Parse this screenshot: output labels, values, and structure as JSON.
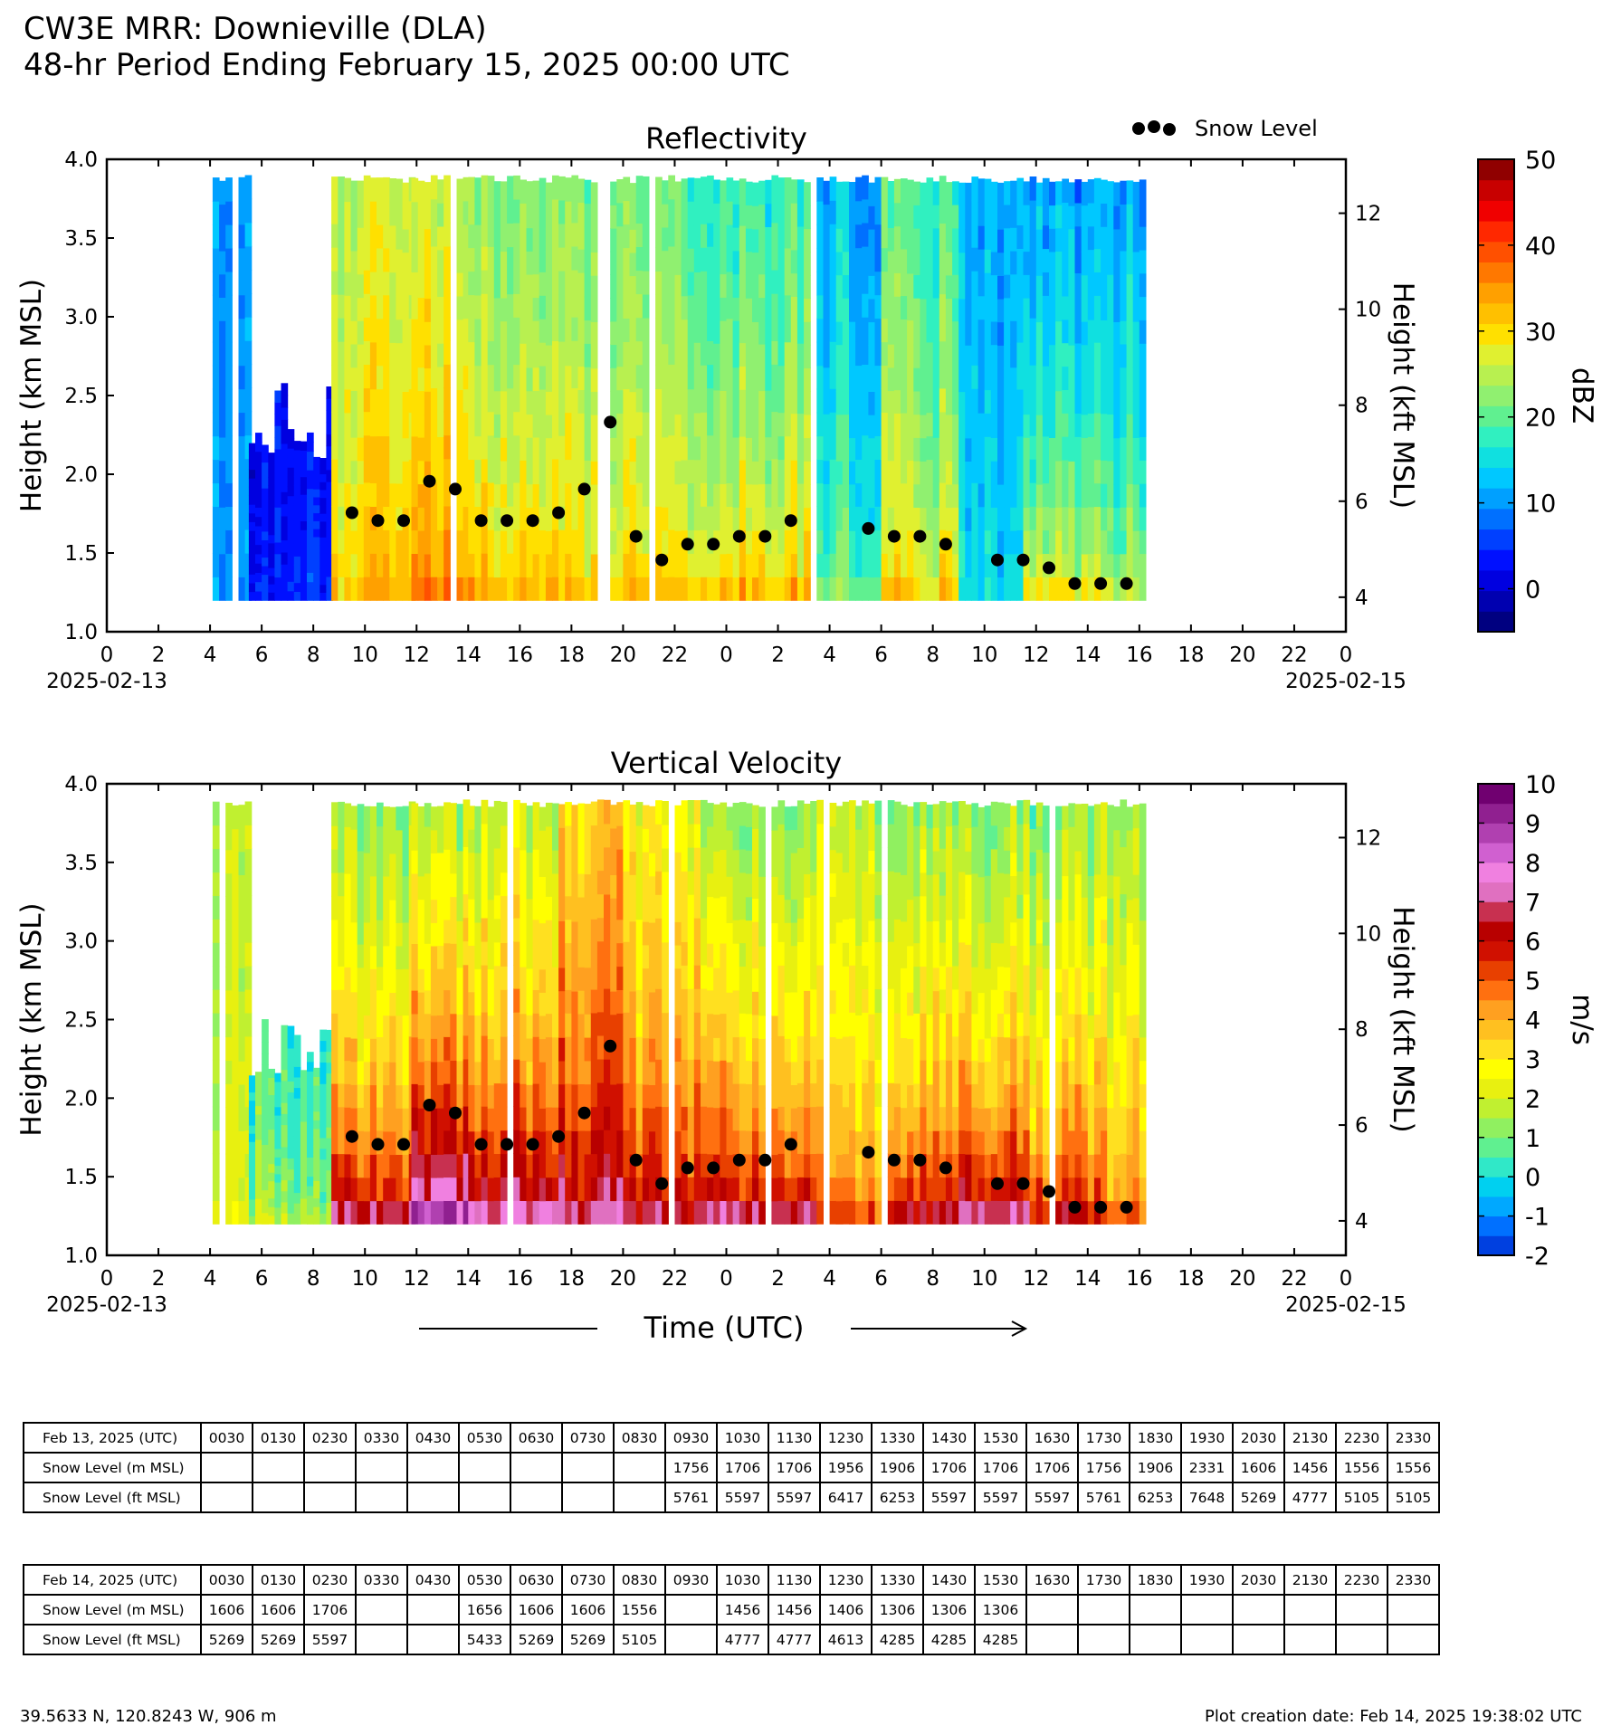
{
  "header": {
    "title": "CW3E MRR: Downieville (DLA)",
    "subtitle": "48-hr Period Ending February 15, 2025 00:00 UTC"
  },
  "common_axes": {
    "x_ticks": [
      "0",
      "2",
      "4",
      "6",
      "8",
      "10",
      "12",
      "14",
      "16",
      "18",
      "20",
      "22",
      "0",
      "2",
      "4",
      "6",
      "8",
      "10",
      "12",
      "14",
      "16",
      "18",
      "20",
      "22",
      "0"
    ],
    "x_date_left": "2025-02-13",
    "x_date_right": "2025-02-15",
    "y_left_ticks": [
      "1.0",
      "1.5",
      "2.0",
      "2.5",
      "3.0",
      "3.5",
      "4.0"
    ],
    "y_left_label": "Height (km MSL)",
    "y_right_ticks": [
      "4",
      "6",
      "8",
      "10",
      "12"
    ],
    "y_right_label": "Height (kft MSL)",
    "time_label": "Time (UTC)"
  },
  "legend": {
    "snow_level": "Snow Level"
  },
  "colorbars": {
    "dbz": {
      "label": "dBZ",
      "ticks": [
        "0",
        "10",
        "20",
        "30",
        "40",
        "50"
      ],
      "min": -5,
      "max": 50,
      "colors": [
        "#000080",
        "#0000b0",
        "#0000e0",
        "#0010ff",
        "#0040ff",
        "#0070ff",
        "#00a0ff",
        "#00c8ff",
        "#10e0e0",
        "#30f0c0",
        "#60f090",
        "#90f070",
        "#b8f050",
        "#e0f030",
        "#ffe000",
        "#ffc000",
        "#ffa000",
        "#ff7800",
        "#ff5000",
        "#ff2800",
        "#f00000",
        "#c80000",
        "#900000"
      ]
    },
    "ms": {
      "label": "m/s",
      "ticks": [
        "-2",
        "-1",
        "0",
        "1",
        "2",
        "3",
        "4",
        "5",
        "6",
        "7",
        "8",
        "9",
        "10"
      ],
      "min": -2,
      "max": 10,
      "colors": [
        "#0040e0",
        "#0070ff",
        "#00a8ff",
        "#00d0f0",
        "#30e8c8",
        "#60f090",
        "#90f060",
        "#c0f030",
        "#e8f010",
        "#ffff00",
        "#ffe020",
        "#ffc020",
        "#ffa020",
        "#ff7010",
        "#e84000",
        "#d01000",
        "#b80000",
        "#c83050",
        "#e070c0",
        "#f080e0",
        "#d060d0",
        "#b040b0",
        "#902090",
        "#700070"
      ]
    }
  },
  "tables": [
    {
      "header": "Feb 13, 2025 (UTC)",
      "times": [
        "0030",
        "0130",
        "0230",
        "0330",
        "0430",
        "0530",
        "0630",
        "0730",
        "0830",
        "0930",
        "1030",
        "1130",
        "1230",
        "1330",
        "1430",
        "1530",
        "1630",
        "1730",
        "1830",
        "1930",
        "2030",
        "2130",
        "2230",
        "2330"
      ],
      "rows": [
        {
          "label": "Snow Level (m MSL)",
          "values": [
            "",
            "",
            "",
            "",
            "",
            "",
            "",
            "",
            "",
            "1756",
            "1706",
            "1706",
            "1956",
            "1906",
            "1706",
            "1706",
            "1706",
            "1756",
            "1906",
            "2331",
            "1606",
            "1456",
            "1556",
            "1556"
          ]
        },
        {
          "label": "Snow Level (ft MSL)",
          "values": [
            "",
            "",
            "",
            "",
            "",
            "",
            "",
            "",
            "",
            "5761",
            "5597",
            "5597",
            "6417",
            "6253",
            "5597",
            "5597",
            "5597",
            "5761",
            "6253",
            "7648",
            "5269",
            "4777",
            "5105",
            "5105"
          ]
        }
      ]
    },
    {
      "header": "Feb 14, 2025 (UTC)",
      "times": [
        "0030",
        "0130",
        "0230",
        "0330",
        "0430",
        "0530",
        "0630",
        "0730",
        "0830",
        "0930",
        "1030",
        "1130",
        "1230",
        "1330",
        "1430",
        "1530",
        "1630",
        "1730",
        "1830",
        "1930",
        "2030",
        "2130",
        "2230",
        "2330"
      ],
      "rows": [
        {
          "label": "Snow Level (m MSL)",
          "values": [
            "1606",
            "1606",
            "1706",
            "",
            "",
            "1656",
            "1606",
            "1606",
            "1556",
            "",
            "1456",
            "1456",
            "1406",
            "1306",
            "1306",
            "1306",
            "",
            "",
            "",
            "",
            "",
            "",
            "",
            ""
          ]
        },
        {
          "label": "Snow Level (ft MSL)",
          "values": [
            "5269",
            "5269",
            "5597",
            "",
            "",
            "5433",
            "5269",
            "5269",
            "5105",
            "",
            "4777",
            "4777",
            "4613",
            "4285",
            "4285",
            "4285",
            "",
            "",
            "",
            "",
            "",
            "",
            "",
            ""
          ]
        }
      ]
    }
  ],
  "footer": {
    "location": "39.5633 N, 120.8243 W, 906 m",
    "creation": "Plot creation date: Feb 14, 2025 19:38:02 UTC"
  },
  "chart_data": [
    {
      "type": "heatmap",
      "title": "Reflectivity",
      "xlabel": "",
      "ylabel": "Height (km MSL)",
      "y2label": "Height (kft MSL)",
      "colorbar_label": "dBZ",
      "xlim": [
        0,
        48
      ],
      "ylim": [
        1.0,
        4.0
      ],
      "clim": [
        -5,
        50
      ],
      "data_extent_hours": [
        4.1,
        40.2
      ],
      "data_height_range": [
        1.2,
        3.9
      ],
      "profile_segments": [
        {
          "start": 4.1,
          "end": 5.5,
          "top": 3.9,
          "surface": 10,
          "aloft": 10
        },
        {
          "start": 5.5,
          "end": 8.7,
          "top": 2.6,
          "surface": 4,
          "aloft": 2
        },
        {
          "start": 8.7,
          "end": 11.8,
          "top": 3.9,
          "surface": 32,
          "aloft": 25
        },
        {
          "start": 11.8,
          "end": 14.0,
          "top": 3.9,
          "surface": 38,
          "aloft": 27
        },
        {
          "start": 14.0,
          "end": 17.5,
          "top": 3.9,
          "surface": 34,
          "aloft": 23
        },
        {
          "start": 17.5,
          "end": 20.0,
          "top": 3.9,
          "surface": 31,
          "aloft": 22
        },
        {
          "start": 20.0,
          "end": 23.0,
          "top": 3.9,
          "surface": 31,
          "aloft": 20
        },
        {
          "start": 23.0,
          "end": 27.5,
          "top": 3.9,
          "surface": 32,
          "aloft": 18
        },
        {
          "start": 27.5,
          "end": 30.0,
          "top": 3.9,
          "surface": 22,
          "aloft": 12
        },
        {
          "start": 30.0,
          "end": 33.0,
          "top": 3.9,
          "surface": 30,
          "aloft": 18
        },
        {
          "start": 33.0,
          "end": 35.5,
          "top": 3.9,
          "surface": 14,
          "aloft": 10
        },
        {
          "start": 35.5,
          "end": 38.5,
          "top": 3.9,
          "surface": 28,
          "aloft": 10
        },
        {
          "start": 38.5,
          "end": 40.2,
          "top": 3.9,
          "surface": 26,
          "aloft": 12
        }
      ],
      "series": [
        {
          "name": "Snow Level",
          "x": [
            9.5,
            10.5,
            11.5,
            12.5,
            13.5,
            14.5,
            15.5,
            16.5,
            17.5,
            18.5,
            19.5,
            20.5,
            21.5,
            22.5,
            23.5,
            24.5,
            25.5,
            26.5,
            29.5,
            30.5,
            31.5,
            32.5,
            34.5,
            35.5,
            36.5,
            37.5,
            38.5,
            39.5
          ],
          "y": [
            1.756,
            1.706,
            1.706,
            1.956,
            1.906,
            1.706,
            1.706,
            1.706,
            1.756,
            1.906,
            2.331,
            1.606,
            1.456,
            1.556,
            1.556,
            1.606,
            1.606,
            1.706,
            1.656,
            1.606,
            1.606,
            1.556,
            1.456,
            1.456,
            1.406,
            1.306,
            1.306,
            1.306
          ]
        }
      ]
    },
    {
      "type": "heatmap",
      "title": "Vertical Velocity",
      "xlabel": "Time (UTC)",
      "ylabel": "Height (km MSL)",
      "y2label": "Height (kft MSL)",
      "colorbar_label": "m/s",
      "xlim": [
        0,
        48
      ],
      "ylim": [
        1.0,
        4.0
      ],
      "clim": [
        -2,
        10
      ],
      "data_extent_hours": [
        4.1,
        40.2
      ],
      "data_height_range": [
        1.2,
        3.9
      ],
      "profile_segments": [
        {
          "start": 4.1,
          "end": 5.5,
          "top": 3.9,
          "surface": 2,
          "aloft": 1.5
        },
        {
          "start": 5.5,
          "end": 8.7,
          "top": 2.6,
          "surface": 1.8,
          "aloft": 0.5
        },
        {
          "start": 8.7,
          "end": 11.8,
          "top": 3.9,
          "surface": 6.5,
          "aloft": 1.2
        },
        {
          "start": 11.8,
          "end": 14.0,
          "top": 3.9,
          "surface": 8.5,
          "aloft": 1.5
        },
        {
          "start": 14.0,
          "end": 17.5,
          "top": 3.9,
          "surface": 7.5,
          "aloft": 2
        },
        {
          "start": 17.5,
          "end": 20.0,
          "top": 3.9,
          "surface": 7,
          "aloft": 3.5
        },
        {
          "start": 20.0,
          "end": 23.0,
          "top": 3.9,
          "surface": 6.5,
          "aloft": 2.5
        },
        {
          "start": 23.0,
          "end": 27.5,
          "top": 3.9,
          "surface": 7,
          "aloft": 1.5
        },
        {
          "start": 27.5,
          "end": 30.0,
          "top": 3.9,
          "surface": 5,
          "aloft": 1.8
        },
        {
          "start": 30.0,
          "end": 33.0,
          "top": 3.9,
          "surface": 6.5,
          "aloft": 1.5
        },
        {
          "start": 33.0,
          "end": 35.5,
          "top": 3.9,
          "surface": 7,
          "aloft": 1.2
        },
        {
          "start": 35.5,
          "end": 38.5,
          "top": 3.9,
          "surface": 6,
          "aloft": 1.3
        },
        {
          "start": 38.5,
          "end": 40.2,
          "top": 3.9,
          "surface": 5,
          "aloft": 1.5
        }
      ],
      "series": [
        {
          "name": "Snow Level",
          "x": [
            9.5,
            10.5,
            11.5,
            12.5,
            13.5,
            14.5,
            15.5,
            16.5,
            17.5,
            18.5,
            19.5,
            20.5,
            21.5,
            22.5,
            23.5,
            24.5,
            25.5,
            26.5,
            29.5,
            30.5,
            31.5,
            32.5,
            34.5,
            35.5,
            36.5,
            37.5,
            38.5,
            39.5
          ],
          "y": [
            1.756,
            1.706,
            1.706,
            1.956,
            1.906,
            1.706,
            1.706,
            1.706,
            1.756,
            1.906,
            2.331,
            1.606,
            1.456,
            1.556,
            1.556,
            1.606,
            1.606,
            1.706,
            1.656,
            1.606,
            1.606,
            1.556,
            1.456,
            1.456,
            1.406,
            1.306,
            1.306,
            1.306
          ]
        }
      ]
    }
  ]
}
